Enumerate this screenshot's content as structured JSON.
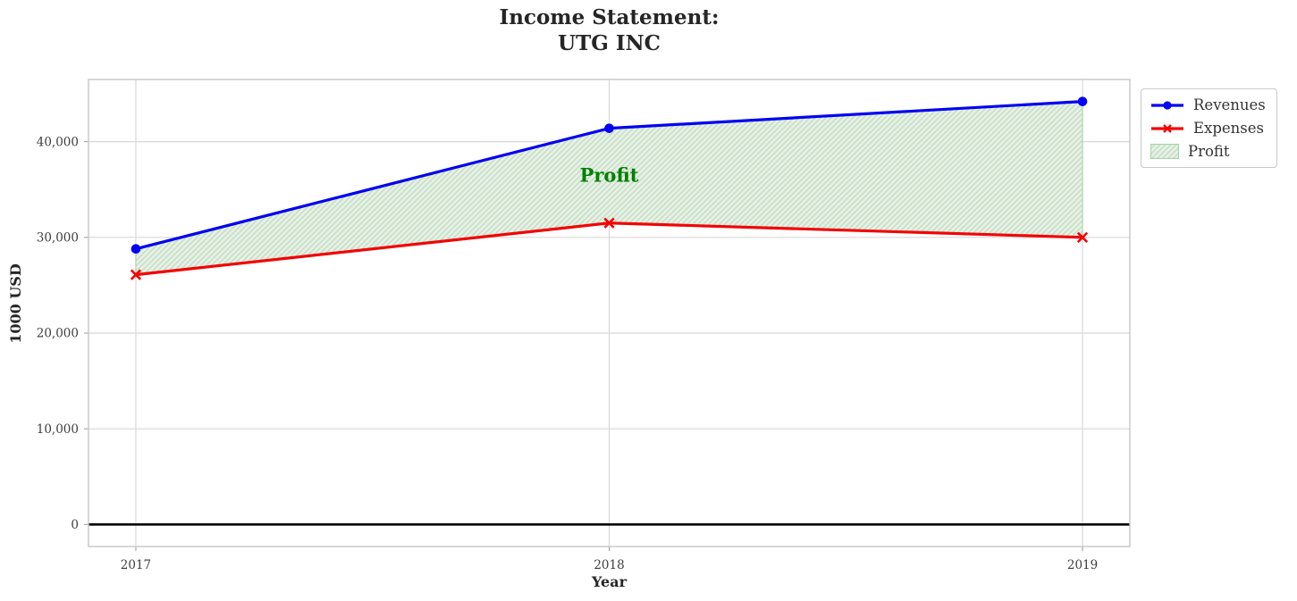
{
  "chart_data": {
    "type": "line",
    "title_lines": [
      "Income Statement:",
      "UTG INC"
    ],
    "xlabel": "Year",
    "ylabel": "1000 USD",
    "x": [
      2017,
      2018,
      2019
    ],
    "series": [
      {
        "name": "Revenues",
        "values": [
          28800,
          41400,
          44200
        ],
        "color": "#0202f2",
        "marker": "circle"
      },
      {
        "name": "Expenses",
        "values": [
          26100,
          31500,
          30000
        ],
        "color": "#f20505",
        "marker": "x"
      }
    ],
    "fill_between": {
      "label": "Profit",
      "between": [
        "Expenses",
        "Revenues"
      ],
      "fill": "#e7f0e6",
      "hatch": "#bedcbe",
      "edge": "#a5d2a5"
    },
    "annotation": {
      "text": "Profit",
      "x": 2018,
      "y": 36500,
      "color": "#008000"
    },
    "xlim": [
      2016.9,
      2019.1
    ],
    "ylim": [
      -2300,
      46500
    ],
    "xticks": {
      "values": [
        2017,
        2018,
        2019
      ],
      "labels": [
        "2017",
        "2018",
        "2019"
      ]
    },
    "yticks": {
      "values": [
        0,
        10000,
        20000,
        30000,
        40000
      ],
      "labels": [
        "0",
        "10,000",
        "20,000",
        "30,000",
        "40,000"
      ]
    },
    "grid": true,
    "zero_line": true,
    "legend_position": "upper-right-outside"
  }
}
